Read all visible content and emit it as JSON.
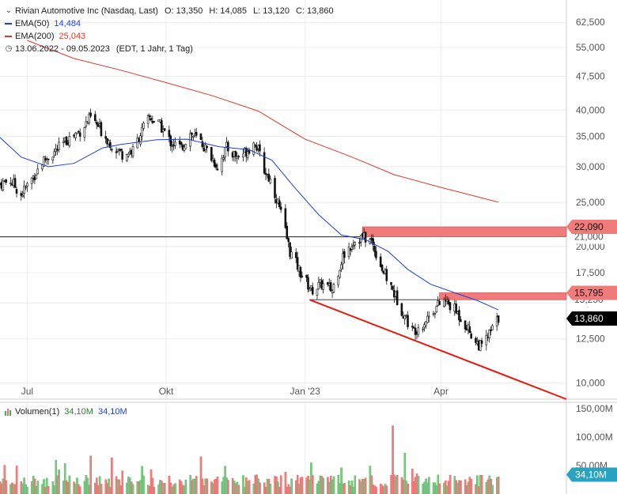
{
  "legend": {
    "title": "Rivian Automotive Inc (Nasdaq, Last)",
    "ohlc": {
      "o_label": "O:",
      "o": "13,350",
      "h_label": "H:",
      "h": "14,085",
      "l_label": "L:",
      "l": "13,120",
      "c_label": "C:",
      "c": "13,860"
    },
    "ema50": {
      "label": "EMA(50)",
      "value": "14,484",
      "color": "#1f3fd6"
    },
    "ema200": {
      "label": "EMA(200)",
      "value": "25,043",
      "color": "#e0392b"
    },
    "range": {
      "icon": "clock-icon",
      "text": "13.06.2022 - 09.05.2023",
      "info": "(EDT, 1 Jahr, 1 Tag)"
    }
  },
  "volume_legend": {
    "label": "Volumen(1)",
    "value1": "34,10M",
    "value2": "34,10M",
    "icon": "volume-bars-icon"
  },
  "chart_data": {
    "type": "candlestick",
    "y_scale": "log",
    "ylim": [
      9200,
      70000
    ],
    "y_ticks": [
      {
        "v": 62500,
        "label": "62,500"
      },
      {
        "v": 55000,
        "label": "55,000"
      },
      {
        "v": 47500,
        "label": "47,500"
      },
      {
        "v": 40000,
        "label": "40,000"
      },
      {
        "v": 35000,
        "label": "35,000"
      },
      {
        "v": 30000,
        "label": "30,000"
      },
      {
        "v": 25000,
        "label": "25,000"
      },
      {
        "v": 21000,
        "label": "21,000"
      },
      {
        "v": 20000,
        "label": "20,000"
      },
      {
        "v": 17500,
        "label": "17,500"
      },
      {
        "v": 15000,
        "label": "15,000"
      },
      {
        "v": 12500,
        "label": "12,500"
      },
      {
        "v": 10000,
        "label": "10,000"
      }
    ],
    "x_ticks": [
      {
        "date": "2022-07-01",
        "label": "Jul"
      },
      {
        "date": "2022-10-01",
        "label": "Okt"
      },
      {
        "date": "2023-01-01",
        "label": "Jan '23"
      },
      {
        "date": "2023-04-01",
        "label": "Apr"
      }
    ],
    "x_range": [
      "2022-06-13",
      "2023-05-09"
    ],
    "x_axis_end": "2023-06-23",
    "price_path": [
      [
        "2022-06-13",
        27.5
      ],
      [
        "2022-06-20",
        28.0
      ],
      [
        "2022-06-27",
        26.0
      ],
      [
        "2022-07-05",
        28.5
      ],
      [
        "2022-07-12",
        31.0
      ],
      [
        "2022-07-20",
        32.5
      ],
      [
        "2022-07-28",
        34.5
      ],
      [
        "2022-08-05",
        36.0
      ],
      [
        "2022-08-12",
        38.5
      ],
      [
        "2022-08-19",
        36.0
      ],
      [
        "2022-08-26",
        33.5
      ],
      [
        "2022-09-02",
        32.0
      ],
      [
        "2022-09-09",
        32.5
      ],
      [
        "2022-09-14",
        35.5
      ],
      [
        "2022-09-20",
        38.5
      ],
      [
        "2022-09-27",
        37.0
      ],
      [
        "2022-10-04",
        34.0
      ],
      [
        "2022-10-11",
        33.0
      ],
      [
        "2022-10-17",
        35.5
      ],
      [
        "2022-10-24",
        34.0
      ],
      [
        "2022-10-31",
        31.5
      ],
      [
        "2022-11-04",
        30.0
      ],
      [
        "2022-11-10",
        33.0
      ],
      [
        "2022-11-17",
        31.5
      ],
      [
        "2022-11-23",
        32.5
      ],
      [
        "2022-11-29",
        34.0
      ],
      [
        "2022-12-05",
        29.5
      ],
      [
        "2022-12-09",
        28.0
      ],
      [
        "2022-12-14",
        25.0
      ],
      [
        "2022-12-19",
        21.5
      ],
      [
        "2022-12-22",
        19.5
      ],
      [
        "2022-12-29",
        17.5
      ],
      [
        "2023-01-05",
        16.0
      ],
      [
        "2023-01-12",
        16.5
      ],
      [
        "2023-01-19",
        16.0
      ],
      [
        "2023-01-26",
        19.0
      ],
      [
        "2023-02-02",
        20.5
      ],
      [
        "2023-02-08",
        21.0
      ],
      [
        "2023-02-14",
        20.5
      ],
      [
        "2023-02-22",
        17.5
      ],
      [
        "2023-02-28",
        16.0
      ],
      [
        "2023-03-06",
        14.5
      ],
      [
        "2023-03-13",
        13.0
      ],
      [
        "2023-03-20",
        13.5
      ],
      [
        "2023-03-27",
        14.5
      ],
      [
        "2023-04-03",
        15.2
      ],
      [
        "2023-04-10",
        14.5
      ],
      [
        "2023-04-17",
        13.5
      ],
      [
        "2023-04-24",
        12.3
      ],
      [
        "2023-04-28",
        12.0
      ],
      [
        "2023-05-03",
        12.8
      ],
      [
        "2023-05-09",
        13.86
      ]
    ],
    "series": [
      {
        "name": "EMA(50)",
        "color": "#1f3fd6",
        "points": [
          [
            "2022-06-13",
            34.8
          ],
          [
            "2022-06-27",
            31.5
          ],
          [
            "2022-07-15",
            30.0
          ],
          [
            "2022-08-01",
            30.5
          ],
          [
            "2022-08-20",
            33.0
          ],
          [
            "2022-09-01",
            33.6
          ],
          [
            "2022-09-25",
            34.4
          ],
          [
            "2022-10-15",
            34.5
          ],
          [
            "2022-11-05",
            33.2
          ],
          [
            "2022-11-25",
            32.7
          ],
          [
            "2022-12-10",
            31.0
          ],
          [
            "2022-12-25",
            27.0
          ],
          [
            "2023-01-10",
            23.5
          ],
          [
            "2023-01-25",
            21.2
          ],
          [
            "2023-02-10",
            20.7
          ],
          [
            "2023-02-25",
            19.5
          ],
          [
            "2023-03-10",
            17.8
          ],
          [
            "2023-03-25",
            16.5
          ],
          [
            "2023-04-10",
            15.8
          ],
          [
            "2023-04-25",
            15.2
          ],
          [
            "2023-05-09",
            14.48
          ]
        ]
      },
      {
        "name": "EMA(200)",
        "color": "#e0392b",
        "points": [
          [
            "2022-07-01",
            57.0
          ],
          [
            "2022-08-01",
            52.0
          ],
          [
            "2022-09-01",
            49.0
          ],
          [
            "2022-10-01",
            46.0
          ],
          [
            "2022-11-01",
            43.0
          ],
          [
            "2022-12-01",
            39.8
          ],
          [
            "2023-01-01",
            34.5
          ],
          [
            "2023-02-01",
            31.5
          ],
          [
            "2023-03-01",
            28.8
          ],
          [
            "2023-04-01",
            27.0
          ],
          [
            "2023-05-09",
            25.04
          ]
        ]
      }
    ],
    "resistance_zones": [
      {
        "from": 21000,
        "to": 22090,
        "start": "2023-02-08",
        "color": "#f07b7b",
        "label": "22,090"
      },
      {
        "from": 15250,
        "to": 15795,
        "start": "2023-03-31",
        "color": "#f07b7b",
        "label": "15,795"
      }
    ],
    "hlines": [
      {
        "value": 21000,
        "start": "2022-06-13",
        "end": "2023-02-08"
      },
      {
        "value": 15250,
        "start": "2023-01-04",
        "end": "2023-03-31"
      }
    ],
    "trendline": {
      "from": [
        "2023-01-04",
        15250
      ],
      "to": [
        "2023-06-23",
        9200
      ],
      "color": "#e8190f"
    },
    "last_price": {
      "label": "13,860",
      "value": 13.86
    },
    "ema_markers": [
      {
        "label": "15,250",
        "value": 15.25
      },
      {
        "label": "21,000",
        "value": 21.0
      }
    ],
    "volume": {
      "ylim_max": 150,
      "y_ticks": [
        {
          "v": 150,
          "label": "150,00M"
        },
        {
          "v": 100,
          "label": "100,00M"
        },
        {
          "v": 50,
          "label": "50,00M"
        }
      ],
      "last": {
        "label": "34,10M",
        "value": 34.1
      }
    }
  }
}
